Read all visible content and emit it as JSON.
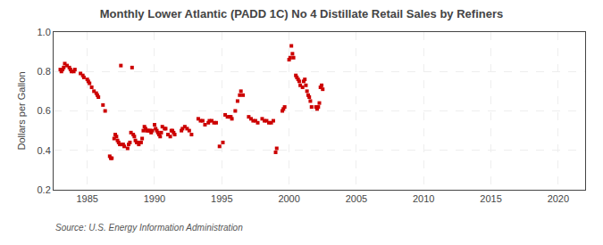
{
  "chart_data": {
    "type": "scatter",
    "title": "Monthly Lower Atlantic (PADD 1C) No 4 Distillate Retail Sales by Refiners",
    "ylabel": "Dollars per Gallon",
    "annotations": [
      "Source: U.S. Energy Information Administration"
    ],
    "color": "#cc0000",
    "marker": "square",
    "grid": true,
    "xlim": [
      1982.5,
      2022
    ],
    "ylim": [
      0.2,
      1.0
    ],
    "xticks": [
      1985,
      1990,
      1995,
      2000,
      2005,
      2010,
      2015,
      2020
    ],
    "yticks": [
      0.2,
      0.4,
      0.6,
      0.8,
      {
        "value": 1.0,
        "label": "1.0"
      }
    ],
    "x": [
      1983.0,
      1983.08,
      1983.17,
      1983.25,
      1983.33,
      1983.5,
      1983.67,
      1983.75,
      1983.83,
      1984.0,
      1984.08,
      1984.5,
      1984.67,
      1984.75,
      1985.0,
      1985.08,
      1985.17,
      1985.33,
      1985.5,
      1985.67,
      1985.75,
      1985.83,
      1986.17,
      1986.33,
      1986.67,
      1986.75,
      1986.83,
      1987.0,
      1987.08,
      1987.17,
      1987.25,
      1987.33,
      1987.42,
      1987.5,
      1987.58,
      1987.67,
      1987.75,
      1988.0,
      1988.08,
      1988.17,
      1988.25,
      1988.33,
      1988.42,
      1988.5,
      1988.58,
      1988.67,
      1988.75,
      1988.83,
      1989.0,
      1989.08,
      1989.17,
      1989.25,
      1989.33,
      1989.42,
      1989.5,
      1989.58,
      1989.67,
      1989.75,
      1989.83,
      1990.0,
      1990.08,
      1990.17,
      1990.25,
      1990.33,
      1990.42,
      1990.5,
      1990.58,
      1990.75,
      1990.83,
      1991.0,
      1991.17,
      1991.25,
      1991.33,
      1991.42,
      1991.5,
      1992.0,
      1992.08,
      1992.25,
      1992.42,
      1992.58,
      1992.75,
      1993.25,
      1993.42,
      1993.58,
      1993.75,
      1994.0,
      1994.08,
      1994.25,
      1994.42,
      1994.58,
      1994.83,
      1995.08,
      1995.25,
      1995.42,
      1995.58,
      1995.67,
      1995.75,
      1996.0,
      1996.17,
      1996.33,
      1996.42,
      1996.58,
      1997.0,
      1997.17,
      1997.33,
      1997.5,
      1997.67,
      1998.0,
      1998.17,
      1998.33,
      1998.5,
      1998.67,
      1998.83,
      1999.0,
      1999.08,
      1999.5,
      1999.58,
      1999.67,
      2000.0,
      2000.08,
      2000.17,
      2000.25,
      2000.33,
      2000.5,
      2000.58,
      2000.67,
      2000.75,
      2000.83,
      2001.0,
      2001.08,
      2001.17,
      2001.25,
      2001.33,
      2001.42,
      2001.5,
      2001.58,
      2001.67,
      2002.0,
      2002.08,
      2002.17,
      2002.25,
      2002.33,
      2002.42,
      2002.5
    ],
    "values": [
      0.81,
      0.8,
      0.81,
      0.82,
      0.84,
      0.83,
      0.82,
      0.81,
      0.8,
      0.8,
      0.81,
      0.79,
      0.78,
      0.77,
      0.76,
      0.75,
      0.74,
      0.72,
      0.7,
      0.69,
      0.68,
      0.67,
      0.63,
      0.6,
      0.37,
      0.36,
      0.36,
      0.46,
      0.48,
      0.47,
      0.45,
      0.44,
      0.43,
      0.83,
      0.43,
      0.43,
      0.42,
      0.41,
      0.43,
      0.44,
      0.49,
      0.82,
      0.48,
      0.47,
      0.45,
      0.44,
      0.44,
      0.43,
      0.44,
      0.46,
      0.5,
      0.52,
      0.51,
      0.5,
      0.5,
      0.5,
      0.5,
      0.49,
      0.5,
      0.53,
      0.51,
      0.5,
      0.49,
      0.48,
      0.47,
      0.49,
      0.52,
      0.51,
      0.51,
      0.48,
      0.47,
      0.5,
      0.5,
      0.49,
      0.48,
      0.5,
      0.51,
      0.52,
      0.51,
      0.5,
      0.48,
      0.56,
      0.55,
      0.55,
      0.53,
      0.54,
      0.55,
      0.55,
      0.54,
      0.54,
      0.42,
      0.44,
      0.58,
      0.57,
      0.57,
      0.57,
      0.56,
      0.6,
      0.65,
      0.68,
      0.7,
      0.68,
      0.57,
      0.56,
      0.55,
      0.55,
      0.54,
      0.56,
      0.55,
      0.55,
      0.54,
      0.54,
      0.55,
      0.39,
      0.41,
      0.6,
      0.61,
      0.62,
      0.86,
      0.87,
      0.93,
      0.89,
      0.87,
      0.78,
      0.77,
      0.76,
      0.75,
      0.73,
      0.72,
      0.75,
      0.76,
      0.73,
      0.7,
      0.68,
      0.67,
      0.65,
      0.62,
      0.62,
      0.61,
      0.62,
      0.64,
      0.72,
      0.73,
      0.71
    ]
  }
}
